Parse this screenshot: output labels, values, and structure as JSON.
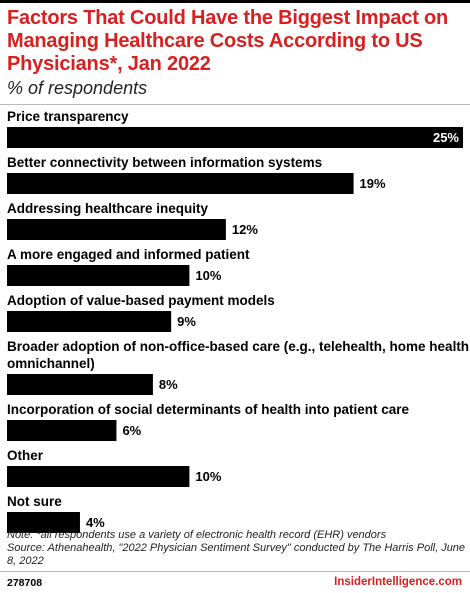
{
  "header": {
    "title": "Factors That Could Have the Biggest Impact on Managing Healthcare Costs According to US Physicians*, Jan 2022",
    "subtitle": "% of respondents"
  },
  "chart_data": {
    "type": "bar",
    "orientation": "horizontal",
    "categories": [
      [
        "Price transparency"
      ],
      [
        "Better connectivity between information systems"
      ],
      [
        "Addressing healthcare inequity"
      ],
      [
        "A more engaged and informed patient"
      ],
      [
        "Adoption of value-based payment models"
      ],
      [
        "Broader adoption of non-office-based care (e.g., telehealth, home health,",
        "omnichannel)"
      ],
      [
        "Incorporation of social determinants of health into patient care"
      ],
      [
        "Other"
      ],
      [
        "Not sure"
      ]
    ],
    "values": [
      25,
      19,
      12,
      10,
      9,
      8,
      6,
      10,
      4
    ],
    "value_labels": [
      "25%",
      "19%",
      "12%",
      "10%",
      "9%",
      "8%",
      "6%",
      "10%",
      "4%"
    ],
    "xlim": [
      0,
      25
    ],
    "bar_color": "#000000",
    "grid": false,
    "legend": "none"
  },
  "footer": {
    "note": "Note: *all respondents use a variety of electronic health record (EHR) vendors",
    "source": "Source: Athenahealth, \"2022 Physician Sentiment Survey\" conducted by The Harris Poll, June 8, 2022",
    "chart_id": "278708",
    "brand": "InsiderIntelligence.com"
  },
  "colors": {
    "accent": "#d7201f",
    "text": "#000000"
  }
}
